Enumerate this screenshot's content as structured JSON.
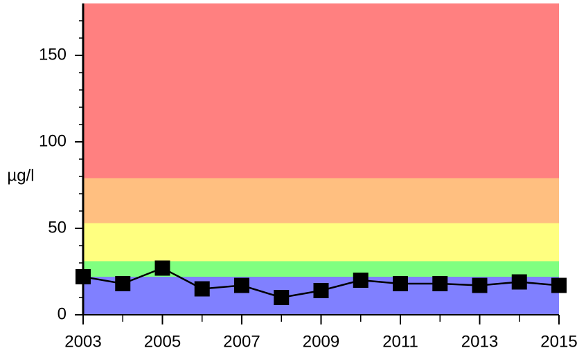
{
  "chart_data": {
    "type": "line",
    "y_label": "µg/l",
    "x": [
      2003,
      2004,
      2005,
      2006,
      2007,
      2008,
      2009,
      2010,
      2011,
      2012,
      2013,
      2014,
      2015
    ],
    "series": [
      {
        "color": "#000000",
        "values": [
          22,
          18,
          27,
          15,
          17,
          10,
          14,
          20,
          18,
          18,
          17,
          19,
          17
        ]
      }
    ],
    "xlim": [
      2003,
      2015
    ],
    "xticks": [
      2003,
      2005,
      2007,
      2009,
      2011,
      2013,
      2015
    ],
    "xminorticks": [
      2004,
      2006,
      2008,
      2010,
      2012,
      2014
    ],
    "ylim": [
      0,
      180
    ],
    "yticks": [
      0,
      50,
      100,
      150
    ],
    "yminorticks": [
      10,
      20,
      30,
      40,
      60,
      70,
      80,
      90,
      110,
      120,
      130,
      140,
      160,
      170
    ],
    "bands": [
      {
        "from": 0,
        "to": 22,
        "color": "#8080ff"
      },
      {
        "from": 22,
        "to": 31,
        "color": "#80ff80"
      },
      {
        "from": 31,
        "to": 53,
        "color": "#ffff80"
      },
      {
        "from": 53,
        "to": 79,
        "color": "#ffbf80"
      },
      {
        "from": 79,
        "to": 180,
        "color": "#ff8080"
      }
    ]
  }
}
